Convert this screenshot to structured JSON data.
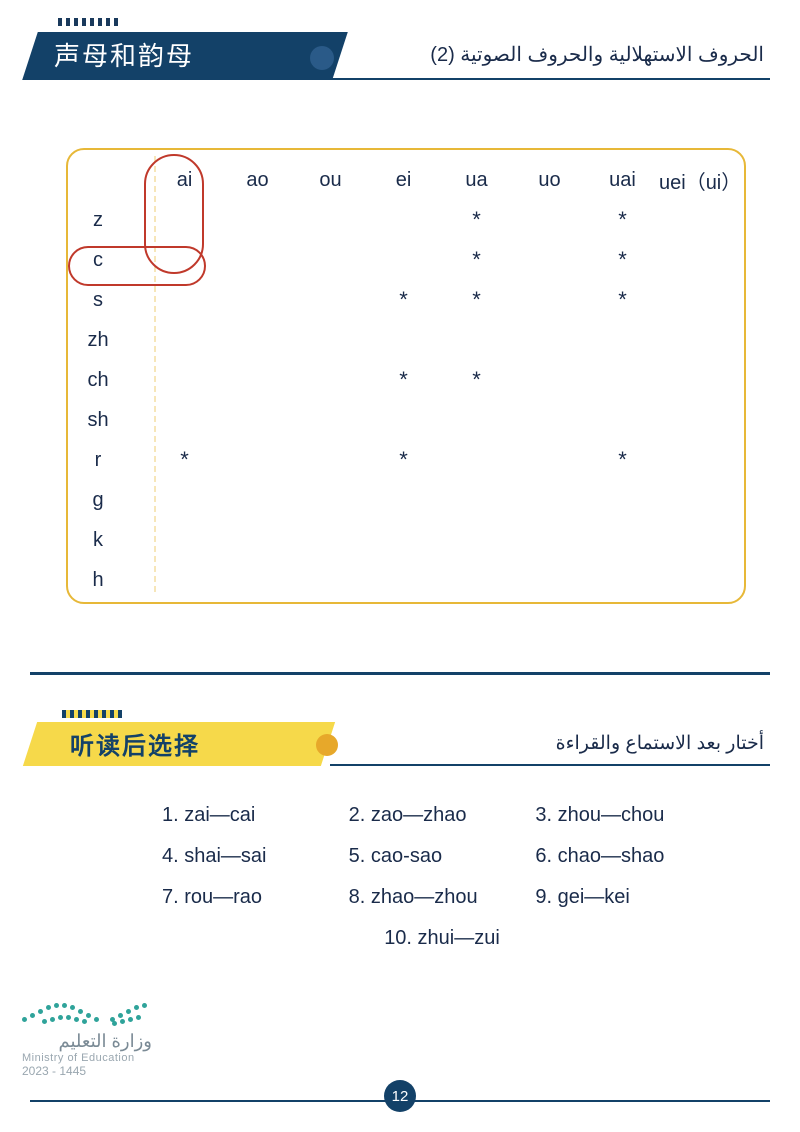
{
  "header": {
    "chinese_title": "声母和韵母",
    "arabic_title": "الحروف الاستهلالية والحروف الصوتية (2)"
  },
  "table": {
    "columns": [
      "ai",
      "ao",
      "ou",
      "ei",
      "ua",
      "uo",
      "uai",
      "uei（ui）"
    ],
    "rows": [
      "z",
      "c",
      "s",
      "zh",
      "ch",
      "sh",
      "r",
      "g",
      "k",
      "h"
    ],
    "marks": {
      "z": [
        "",
        "",
        "",
        "",
        "*",
        "",
        "*",
        ""
      ],
      "c": [
        "",
        "",
        "",
        "",
        "*",
        "",
        "*",
        ""
      ],
      "s": [
        "",
        "",
        "",
        "*",
        "*",
        "",
        "*",
        ""
      ],
      "zh": [
        "",
        "",
        "",
        "",
        "",
        "",
        "",
        ""
      ],
      "ch": [
        "",
        "",
        "",
        "*",
        "*",
        "",
        "",
        ""
      ],
      "sh": [
        "",
        "",
        "",
        "",
        "",
        "",
        "",
        ""
      ],
      "r": [
        "*",
        "",
        "",
        "*",
        "",
        "",
        "*",
        ""
      ],
      "g": [
        "",
        "",
        "",
        "",
        "",
        "",
        "",
        ""
      ],
      "k": [
        "",
        "",
        "",
        "",
        "",
        "",
        "",
        ""
      ],
      "h": [
        "",
        "",
        "",
        "",
        "",
        "",
        "",
        ""
      ]
    },
    "highlight": {
      "col": "ai",
      "row": "c"
    }
  },
  "section2": {
    "chinese_title": "听读后选择",
    "arabic_title": "أختار بعد الاستماع والقراءة"
  },
  "exercises": [
    [
      "1. zai—cai",
      "2. zao—zhao",
      "3. zhou—chou"
    ],
    [
      "4. shai—sai",
      "5. cao-sao",
      "6. chao—shao"
    ],
    [
      "7. rou—rao",
      "8. zhao—zhou",
      "9. gei—kei"
    ],
    [
      "10. zhui—zui"
    ]
  ],
  "ministry": {
    "arabic": "وزارة التعليم",
    "english": "Ministry of Education",
    "years": "2023 - 1445"
  },
  "page_number": "12"
}
